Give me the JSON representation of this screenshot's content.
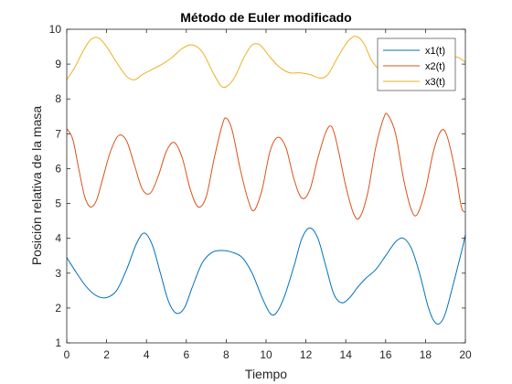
{
  "chart_data": {
    "type": "line",
    "title": "Método de Euler modificado",
    "xlabel": "Tiempo",
    "ylabel": "Posición relativa de la masa",
    "xlim": [
      0,
      20
    ],
    "ylim": [
      1,
      10
    ],
    "xticks": [
      0,
      2,
      4,
      6,
      8,
      10,
      12,
      14,
      16,
      18,
      20
    ],
    "yticks": [
      1,
      2,
      3,
      4,
      5,
      6,
      7,
      8,
      9,
      10
    ],
    "grid": false,
    "legend_position": "top-right",
    "series": [
      {
        "name": "x1(t)",
        "color": "#0072BD",
        "points": [
          [
            0,
            3.45
          ],
          [
            0.5,
            3.0
          ],
          [
            1.0,
            2.6
          ],
          [
            1.5,
            2.35
          ],
          [
            2.0,
            2.3
          ],
          [
            2.5,
            2.5
          ],
          [
            3.0,
            3.1
          ],
          [
            3.5,
            3.85
          ],
          [
            3.9,
            4.15
          ],
          [
            4.3,
            3.8
          ],
          [
            4.7,
            3.0
          ],
          [
            5.1,
            2.2
          ],
          [
            5.5,
            1.85
          ],
          [
            5.9,
            2.0
          ],
          [
            6.3,
            2.6
          ],
          [
            6.8,
            3.3
          ],
          [
            7.3,
            3.6
          ],
          [
            7.8,
            3.65
          ],
          [
            8.3,
            3.6
          ],
          [
            8.8,
            3.45
          ],
          [
            9.3,
            3.0
          ],
          [
            9.8,
            2.3
          ],
          [
            10.2,
            1.85
          ],
          [
            10.5,
            1.85
          ],
          [
            10.9,
            2.3
          ],
          [
            11.4,
            3.2
          ],
          [
            11.8,
            4.0
          ],
          [
            12.2,
            4.3
          ],
          [
            12.6,
            4.0
          ],
          [
            13.0,
            3.2
          ],
          [
            13.4,
            2.4
          ],
          [
            13.8,
            2.15
          ],
          [
            14.2,
            2.3
          ],
          [
            14.6,
            2.6
          ],
          [
            15.0,
            2.85
          ],
          [
            15.5,
            3.1
          ],
          [
            16.0,
            3.5
          ],
          [
            16.5,
            3.9
          ],
          [
            16.9,
            4.0
          ],
          [
            17.3,
            3.7
          ],
          [
            17.7,
            3.0
          ],
          [
            18.1,
            2.1
          ],
          [
            18.4,
            1.65
          ],
          [
            18.7,
            1.55
          ],
          [
            19.0,
            1.85
          ],
          [
            19.4,
            2.7
          ],
          [
            19.8,
            3.6
          ],
          [
            20.0,
            4.1
          ]
        ]
      },
      {
        "name": "x2(t)",
        "color": "#D95319",
        "points": [
          [
            0,
            7.15
          ],
          [
            0.3,
            6.85
          ],
          [
            0.6,
            6.0
          ],
          [
            0.9,
            5.2
          ],
          [
            1.2,
            4.9
          ],
          [
            1.5,
            5.1
          ],
          [
            1.8,
            5.7
          ],
          [
            2.2,
            6.5
          ],
          [
            2.6,
            6.95
          ],
          [
            3.0,
            6.8
          ],
          [
            3.4,
            6.1
          ],
          [
            3.8,
            5.4
          ],
          [
            4.2,
            5.3
          ],
          [
            4.6,
            5.8
          ],
          [
            5.0,
            6.5
          ],
          [
            5.4,
            6.75
          ],
          [
            5.8,
            6.3
          ],
          [
            6.2,
            5.4
          ],
          [
            6.6,
            4.9
          ],
          [
            7.0,
            5.2
          ],
          [
            7.4,
            6.3
          ],
          [
            7.8,
            7.25
          ],
          [
            8.0,
            7.45
          ],
          [
            8.3,
            7.1
          ],
          [
            8.7,
            6.0
          ],
          [
            9.1,
            5.1
          ],
          [
            9.4,
            4.8
          ],
          [
            9.8,
            5.4
          ],
          [
            10.2,
            6.5
          ],
          [
            10.6,
            6.9
          ],
          [
            11.0,
            6.6
          ],
          [
            11.4,
            5.7
          ],
          [
            11.8,
            5.15
          ],
          [
            12.2,
            5.4
          ],
          [
            12.6,
            6.3
          ],
          [
            13.0,
            7.05
          ],
          [
            13.3,
            7.2
          ],
          [
            13.6,
            6.6
          ],
          [
            14.0,
            5.5
          ],
          [
            14.4,
            4.7
          ],
          [
            14.7,
            4.6
          ],
          [
            15.1,
            5.3
          ],
          [
            15.5,
            6.6
          ],
          [
            15.9,
            7.45
          ],
          [
            16.1,
            7.55
          ],
          [
            16.5,
            7.0
          ],
          [
            16.9,
            5.7
          ],
          [
            17.3,
            4.8
          ],
          [
            17.6,
            4.7
          ],
          [
            18.0,
            5.4
          ],
          [
            18.4,
            6.5
          ],
          [
            18.8,
            7.1
          ],
          [
            19.1,
            6.9
          ],
          [
            19.5,
            5.9
          ],
          [
            19.8,
            4.9
          ],
          [
            20.0,
            4.75
          ]
        ]
      },
      {
        "name": "x3(t)",
        "color": "#EDB120",
        "points": [
          [
            0,
            8.55
          ],
          [
            0.4,
            8.9
          ],
          [
            0.8,
            9.35
          ],
          [
            1.2,
            9.7
          ],
          [
            1.6,
            9.75
          ],
          [
            2.0,
            9.5
          ],
          [
            2.5,
            9.05
          ],
          [
            3.0,
            8.65
          ],
          [
            3.4,
            8.55
          ],
          [
            3.8,
            8.7
          ],
          [
            4.3,
            8.85
          ],
          [
            4.8,
            9.0
          ],
          [
            5.3,
            9.2
          ],
          [
            5.8,
            9.45
          ],
          [
            6.3,
            9.55
          ],
          [
            6.8,
            9.35
          ],
          [
            7.3,
            8.8
          ],
          [
            7.7,
            8.4
          ],
          [
            8.0,
            8.35
          ],
          [
            8.4,
            8.6
          ],
          [
            8.9,
            9.2
          ],
          [
            9.3,
            9.55
          ],
          [
            9.7,
            9.55
          ],
          [
            10.2,
            9.2
          ],
          [
            10.7,
            8.9
          ],
          [
            11.2,
            8.75
          ],
          [
            11.7,
            8.75
          ],
          [
            12.2,
            8.7
          ],
          [
            12.7,
            8.6
          ],
          [
            13.1,
            8.7
          ],
          [
            13.6,
            9.2
          ],
          [
            14.1,
            9.65
          ],
          [
            14.5,
            9.8
          ],
          [
            14.9,
            9.6
          ],
          [
            15.3,
            9.1
          ],
          [
            15.7,
            8.85
          ],
          [
            16.1,
            8.85
          ],
          [
            16.6,
            9.0
          ],
          [
            17.1,
            9.2
          ],
          [
            17.6,
            9.1
          ],
          [
            18.1,
            9.0
          ],
          [
            18.6,
            9.05
          ],
          [
            19.1,
            9.15
          ],
          [
            19.6,
            9.2
          ],
          [
            20.0,
            9.05
          ]
        ]
      }
    ]
  }
}
